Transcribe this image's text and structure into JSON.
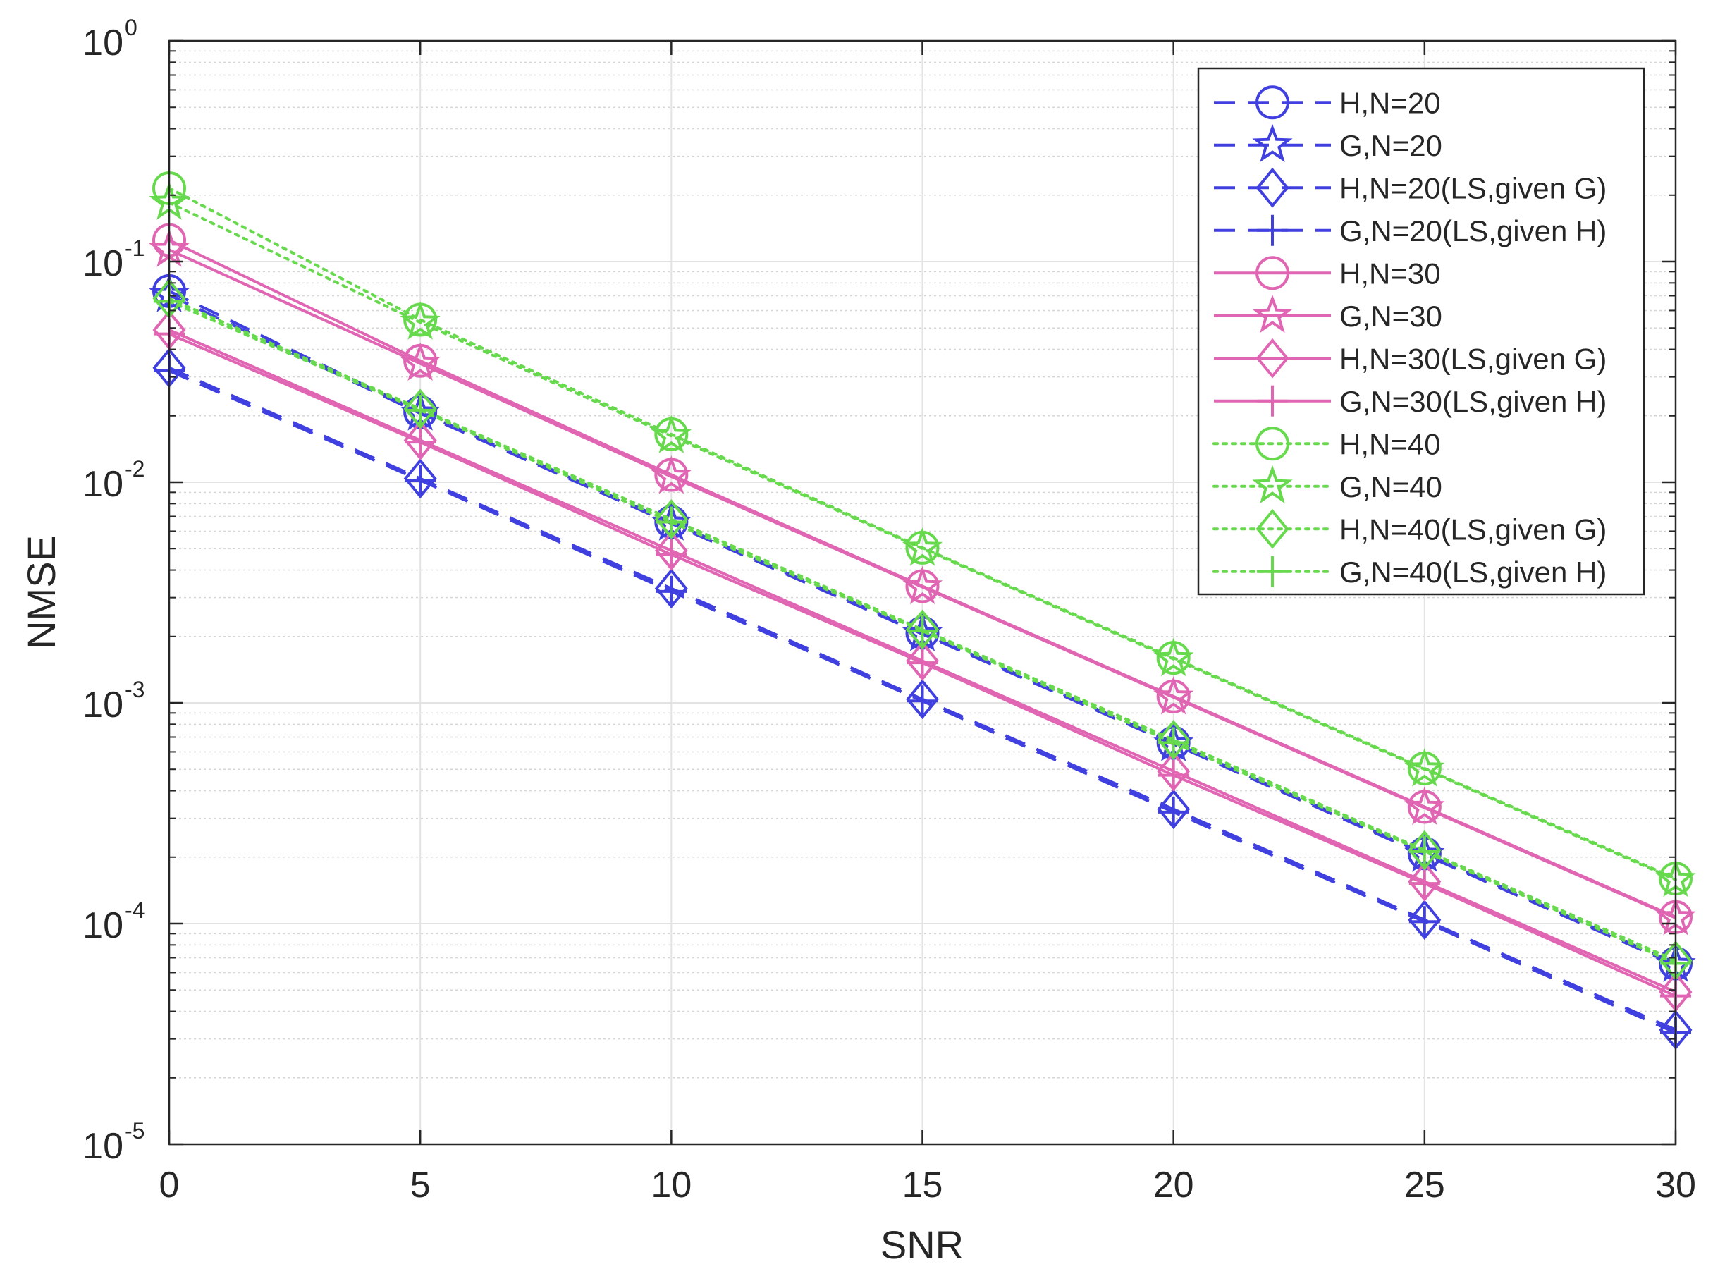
{
  "chart_data": {
    "type": "line",
    "title": "",
    "xlabel": "SNR",
    "ylabel": "NMSE",
    "xlim": [
      0,
      30
    ],
    "ylim": [
      1e-05,
      1
    ],
    "yscale": "log",
    "grid": true,
    "legend_position": "top-right",
    "x": [
      0,
      5,
      10,
      15,
      20,
      25,
      30
    ],
    "x_ticks": [
      "0",
      "5",
      "10",
      "15",
      "20",
      "25",
      "30"
    ],
    "y_tick_values": [
      1,
      0.1,
      0.01,
      0.001,
      0.0001,
      1e-05
    ],
    "y_ticks": [
      {
        "base": "10",
        "exp": "0"
      },
      {
        "base": "10",
        "exp": "-1"
      },
      {
        "base": "10",
        "exp": "-2"
      },
      {
        "base": "10",
        "exp": "-3"
      },
      {
        "base": "10",
        "exp": "-4"
      },
      {
        "base": "10",
        "exp": "-5"
      }
    ],
    "series": [
      {
        "name": "H,N=20",
        "color": "#4040e0",
        "dash": "dashed",
        "marker": "circle",
        "values": [
          0.0735,
          0.0208,
          0.0066,
          0.00208,
          0.00066,
          0.000208,
          6.6e-05
        ]
      },
      {
        "name": "G,N=20",
        "color": "#4040e0",
        "dash": "dashed",
        "marker": "star",
        "values": [
          0.0705,
          0.0205,
          0.0065,
          0.00205,
          0.00065,
          0.000205,
          6.5e-05
        ]
      },
      {
        "name": "H,N=20(LS,given G)",
        "color": "#4040e0",
        "dash": "dashed",
        "marker": "diamond",
        "values": [
          0.033,
          0.0104,
          0.0033,
          0.00104,
          0.00033,
          0.000104,
          3.3e-05
        ]
      },
      {
        "name": "G,N=20(LS,given H)",
        "color": "#4040e0",
        "dash": "dashed",
        "marker": "plus",
        "values": [
          0.032,
          0.0102,
          0.0032,
          0.00102,
          0.00032,
          0.000102,
          3.2e-05
        ]
      },
      {
        "name": "H,N=30",
        "color": "#e066b3",
        "dash": "solid",
        "marker": "circle",
        "values": [
          0.125,
          0.0355,
          0.0108,
          0.00338,
          0.00107,
          0.000338,
          0.000107
        ]
      },
      {
        "name": "G,N=30",
        "color": "#e066b3",
        "dash": "solid",
        "marker": "star",
        "values": [
          0.113,
          0.0345,
          0.0106,
          0.00335,
          0.00106,
          0.000335,
          0.000106
        ]
      },
      {
        "name": "H,N=30(LS,given G)",
        "color": "#e066b3",
        "dash": "solid",
        "marker": "diamond",
        "values": [
          0.049,
          0.0155,
          0.0049,
          0.00155,
          0.00049,
          0.000155,
          4.9e-05
        ]
      },
      {
        "name": "G,N=30(LS,given H)",
        "color": "#e066b3",
        "dash": "solid",
        "marker": "plus",
        "values": [
          0.047,
          0.0152,
          0.0047,
          0.00152,
          0.00047,
          0.000152,
          4.7e-05
        ]
      },
      {
        "name": "H,N=40",
        "color": "#66d94d",
        "dash": "dotted",
        "marker": "circle",
        "values": [
          0.215,
          0.0545,
          0.0165,
          0.00505,
          0.0016,
          0.000505,
          0.00016
        ]
      },
      {
        "name": "G,N=40",
        "color": "#66d94d",
        "dash": "dotted",
        "marker": "star",
        "values": [
          0.185,
          0.053,
          0.0162,
          0.005,
          0.00158,
          0.0005,
          0.000158
        ]
      },
      {
        "name": "H,N=40(LS,given G)",
        "color": "#66d94d",
        "dash": "dotted",
        "marker": "diamond",
        "values": [
          0.068,
          0.0215,
          0.0068,
          0.00215,
          0.00068,
          0.000215,
          6.8e-05
        ]
      },
      {
        "name": "G,N=40(LS,given H)",
        "color": "#66d94d",
        "dash": "dotted",
        "marker": "plus",
        "values": [
          0.066,
          0.0212,
          0.0066,
          0.00212,
          0.00066,
          0.000212,
          6.6e-05
        ]
      }
    ]
  }
}
